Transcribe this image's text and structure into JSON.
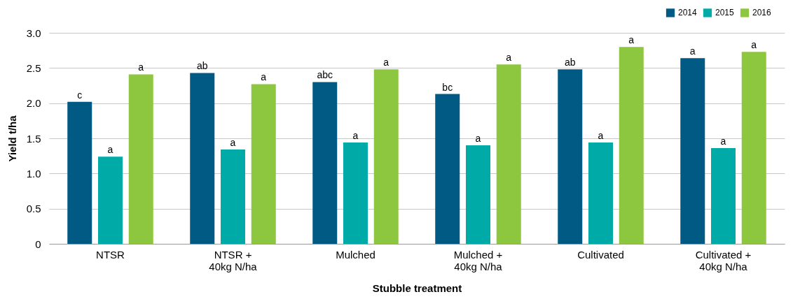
{
  "chart_data": {
    "type": "bar",
    "xlabel": "Stubble treatment",
    "ylabel": "Yield t/ha",
    "categories": [
      "NTSR",
      "NTSR +\n40kg N/ha",
      "Mulched",
      "Mulched +\n40kg N/ha",
      "Cultivated",
      "Cultivated +\n40kg N/ha"
    ],
    "series": [
      {
        "name": "2014",
        "color": "#005a84",
        "values": [
          2.02,
          2.43,
          2.3,
          2.13,
          2.48,
          2.64
        ],
        "value_labels": [
          "c",
          "ab",
          "abc",
          "bc",
          "ab",
          "a"
        ]
      },
      {
        "name": "2015",
        "color": "#00aaa6",
        "values": [
          1.24,
          1.34,
          1.44,
          1.4,
          1.44,
          1.36
        ],
        "value_labels": [
          "a",
          "a",
          "a",
          "a",
          "a",
          "a"
        ]
      },
      {
        "name": "2016",
        "color": "#8dc63f",
        "values": [
          2.41,
          2.27,
          2.48,
          2.55,
          2.8,
          2.73
        ],
        "value_labels": [
          "a",
          "a",
          "a",
          "a",
          "a",
          "a"
        ]
      }
    ],
    "ylim": [
      0,
      3
    ],
    "yticks": [
      0,
      {
        "value": 0.5,
        "label": "0.5"
      },
      {
        "value": 1,
        "label": "1.0"
      },
      {
        "value": 1.5,
        "label": "1.5"
      },
      {
        "value": 2,
        "label": "2.0"
      },
      {
        "value": 2.5,
        "label": "2.5"
      },
      {
        "value": 3,
        "label": "3.0"
      }
    ],
    "grid": "y",
    "legend": "top right"
  }
}
